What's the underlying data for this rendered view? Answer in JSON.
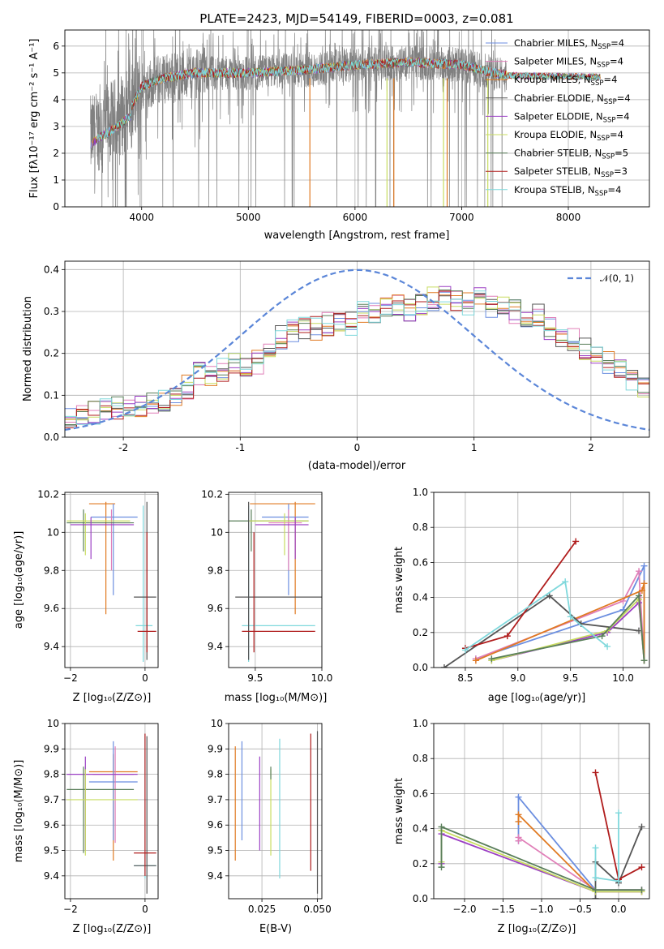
{
  "colors": {
    "Chabrier MILES": "#6b8ee0",
    "Salpeter MILES": "#e07fb8",
    "Kroupa MILES": "#e07a22",
    "Chabrier ELODIE": "#555555",
    "Salpeter ELODIE": "#9b3fc4",
    "Kroupa ELODIE": "#c8dc60",
    "Chabrier STELIB": "#5a7f5a",
    "Salpeter STELIB": "#b01c1c",
    "Kroupa STELIB": "#7fd8dc"
  },
  "chart_data": [
    {
      "id": "spectrum",
      "type": "line",
      "title": "PLATE=2423, MJD=54149, FIBERID=0003, z=0.081",
      "xlabel": "wavelength [Angstrom, rest frame]",
      "ylabel": "Flux [fλ10⁻¹⁷ erg cm⁻² s⁻¹ A⁻¹]",
      "xlim": [
        3280,
        8760
      ],
      "ylim": [
        0,
        6.6
      ],
      "xticks": [
        4000,
        5000,
        6000,
        7000,
        8000
      ],
      "yticks": [
        0,
        1,
        2,
        3,
        4,
        5,
        6
      ],
      "legend_position": "upper right",
      "legend": [
        {
          "name": "Chabrier MILES",
          "label": "Chabrier MILES, N",
          "sub": "SSP",
          "tail": "=4"
        },
        {
          "name": "Salpeter MILES",
          "label": "Salpeter MILES, N",
          "sub": "SSP",
          "tail": "=4"
        },
        {
          "name": "Kroupa MILES",
          "label": "Kroupa MILES, N",
          "sub": "SSP",
          "tail": "=4"
        },
        {
          "name": "Chabrier ELODIE",
          "label": "Chabrier ELODIE, N",
          "sub": "SSP",
          "tail": "=4"
        },
        {
          "name": "Salpeter ELODIE",
          "label": "Salpeter ELODIE, N",
          "sub": "SSP",
          "tail": "=4"
        },
        {
          "name": "Kroupa ELODIE",
          "label": "Kroupa ELODIE, N",
          "sub": "SSP",
          "tail": "=4"
        },
        {
          "name": "Chabrier STELIB",
          "label": "Chabrier STELIB, N",
          "sub": "SSP",
          "tail": "=5"
        },
        {
          "name": "Salpeter STELIB",
          "label": "Salpeter STELIB, N",
          "sub": "SSP",
          "tail": "=3"
        },
        {
          "name": "Kroupa STELIB",
          "label": "Kroupa STELIB, N",
          "sub": "SSP",
          "tail": "=4"
        }
      ],
      "data_range": [
        3520,
        7420
      ],
      "continuum": {
        "x": [
          3520,
          3600,
          3700,
          3800,
          3900,
          4000,
          4200,
          4500,
          5000,
          5500,
          6000,
          6500,
          7000,
          7300,
          7420
        ],
        "y": [
          2.6,
          2.9,
          3.1,
          3.4,
          3.7,
          4.5,
          4.8,
          5.0,
          5.0,
          5.1,
          5.3,
          5.4,
          5.3,
          5.0,
          4.9
        ]
      },
      "model_range": [
        3520,
        8300
      ],
      "sky_lines": [
        5577,
        6300,
        6364,
        6830,
        6864,
        7245
      ]
    },
    {
      "id": "residuals",
      "type": "bar",
      "xlabel": "(data-model)/error",
      "ylabel": "Normed distribution",
      "xlim": [
        -2.5,
        2.5
      ],
      "ylim": [
        0,
        0.42
      ],
      "xticks": [
        -2,
        -1,
        0,
        1,
        2
      ],
      "yticks": [
        0.0,
        0.1,
        0.2,
        0.3,
        0.4
      ],
      "ytick_labels": [
        "0.0",
        "0.1",
        "0.2",
        "0.3",
        "0.4"
      ],
      "bin_width": 0.1,
      "base_shape": [
        0.04,
        0.05,
        0.06,
        0.065,
        0.07,
        0.072,
        0.075,
        0.08,
        0.085,
        0.1,
        0.12,
        0.15,
        0.14,
        0.16,
        0.18,
        0.17,
        0.18,
        0.21,
        0.24,
        0.25,
        0.26,
        0.26,
        0.27,
        0.28,
        0.27,
        0.3,
        0.29,
        0.31,
        0.32,
        0.3,
        0.32,
        0.33,
        0.34,
        0.33,
        0.32,
        0.33,
        0.31,
        0.32,
        0.3,
        0.27,
        0.29,
        0.26,
        0.24,
        0.23,
        0.21,
        0.19,
        0.18,
        0.16,
        0.14,
        0.12
      ],
      "normal_label": "𝒩(0, 1)",
      "normal_color": "#5b86d8",
      "legend_position": "upper right"
    },
    {
      "id": "age_vs_Z",
      "type": "scatter",
      "xlabel": "Z [log₁₀(Z/Z⊙)]",
      "ylabel": "age  [log₁₀(age/yr)]",
      "xlim": [
        -2.15,
        0.35
      ],
      "ylim": [
        9.29,
        10.21
      ],
      "xticks": [
        -2,
        0
      ],
      "xtick_labels": [
        "−2",
        "0"
      ],
      "yticks": [
        9.4,
        9.6,
        9.8,
        10.0,
        10.2
      ],
      "points": [
        {
          "s": "Kroupa MILES",
          "x": -1.05,
          "y": 10.15,
          "ex": [
            -1.5,
            -0.8
          ],
          "ey": [
            9.57,
            10.16
          ]
        },
        {
          "s": "Chabrier MILES",
          "x": -0.85,
          "y": 10.08,
          "ex": [
            -1.45,
            -0.2
          ],
          "ey": [
            9.67,
            10.15
          ]
        },
        {
          "s": "Salpeter MILES",
          "x": -0.9,
          "y": 10.05,
          "ex": [
            -1.6,
            -0.4
          ],
          "ey": [
            9.8,
            10.12
          ]
        },
        {
          "s": "Chabrier STELIB",
          "x": -1.65,
          "y": 10.05,
          "ex": [
            -2.1,
            -0.3
          ],
          "ey": [
            9.9,
            10.12
          ]
        },
        {
          "s": "Kroupa ELODIE",
          "x": -1.6,
          "y": 10.06,
          "ex": [
            -2.1,
            -0.4
          ],
          "ey": [
            9.88,
            10.1
          ]
        },
        {
          "s": "Salpeter ELODIE",
          "x": -1.45,
          "y": 10.04,
          "ex": [
            -2.0,
            -0.3
          ],
          "ey": [
            9.86,
            10.08
          ]
        },
        {
          "s": "Kroupa STELIB",
          "x": -0.05,
          "y": 9.51,
          "ex": [
            -0.25,
            0.2
          ],
          "ey": [
            9.32,
            10.14
          ]
        },
        {
          "s": "Chabrier ELODIE",
          "x": 0.05,
          "y": 9.66,
          "ex": [
            -0.3,
            0.3
          ],
          "ey": [
            9.33,
            10.16
          ]
        },
        {
          "s": "Salpeter STELIB",
          "x": 0.05,
          "y": 9.48,
          "ex": [
            -0.2,
            0.3
          ],
          "ey": [
            9.37,
            10.0
          ]
        }
      ]
    },
    {
      "id": "age_vs_mass",
      "type": "scatter",
      "xlabel": "mass [log₁₀(M/M⊙)]",
      "xlim": [
        9.3,
        10.0
      ],
      "ylim": [
        9.29,
        10.21
      ],
      "xticks": [
        9.5,
        10.0
      ],
      "xtick_labels": [
        "9.5",
        "10.0"
      ],
      "yticks": [
        9.4,
        9.6,
        9.8,
        10.0,
        10.2
      ],
      "points": [
        {
          "s": "Kroupa MILES",
          "x": 9.8,
          "y": 10.15,
          "ex": [
            9.46,
            9.95
          ],
          "ey": [
            9.57,
            10.16
          ]
        },
        {
          "s": "Chabrier MILES",
          "x": 9.75,
          "y": 10.08,
          "ex": [
            9.55,
            9.9
          ],
          "ey": [
            9.67,
            10.15
          ]
        },
        {
          "s": "Salpeter MILES",
          "x": 9.75,
          "y": 10.05,
          "ex": [
            9.6,
            9.85
          ],
          "ey": [
            9.8,
            10.12
          ]
        },
        {
          "s": "Chabrier STELIB",
          "x": 9.47,
          "y": 10.06,
          "ex": [
            9.3,
            9.9
          ],
          "ey": [
            9.9,
            10.12
          ]
        },
        {
          "s": "Kroupa ELODIE",
          "x": 9.72,
          "y": 10.06,
          "ex": [
            9.45,
            9.9
          ],
          "ey": [
            9.88,
            10.1
          ]
        },
        {
          "s": "Salpeter ELODIE",
          "x": 9.8,
          "y": 10.04,
          "ex": [
            9.5,
            9.9
          ],
          "ey": [
            9.86,
            10.08
          ]
        },
        {
          "s": "Kroupa STELIB",
          "x": 9.45,
          "y": 9.51,
          "ex": [
            9.4,
            9.95
          ],
          "ey": [
            9.32,
            10.14
          ]
        },
        {
          "s": "Chabrier ELODIE",
          "x": 9.45,
          "y": 9.66,
          "ex": [
            9.35,
            10.0
          ],
          "ey": [
            9.33,
            10.16
          ]
        },
        {
          "s": "Salpeter STELIB",
          "x": 9.49,
          "y": 9.48,
          "ex": [
            9.4,
            9.95
          ],
          "ey": [
            9.37,
            10.0
          ]
        }
      ]
    },
    {
      "id": "weight_vs_age",
      "type": "line",
      "xlabel": "age  [log₁₀(age/yr)]",
      "ylabel": "mass weight",
      "xlim": [
        8.2,
        10.25
      ],
      "ylim": [
        0,
        1
      ],
      "xticks": [
        8.5,
        9.0,
        9.5,
        10.0
      ],
      "xtick_labels": [
        "8.5",
        "9.0",
        "9.5",
        "10.0"
      ],
      "yticks": [
        0,
        0.2,
        0.4,
        0.6,
        0.8,
        1.0
      ],
      "ytick_labels": [
        "0.0",
        "0.2",
        "0.4",
        "0.6",
        "0.8",
        "1.0"
      ],
      "series": [
        {
          "s": "Chabrier MILES",
          "x": [
            8.6,
            10.0,
            10.2,
            10.2
          ],
          "y": [
            0.05,
            0.33,
            0.58,
            0.04
          ]
        },
        {
          "s": "Salpeter MILES",
          "x": [
            8.6,
            10.0,
            10.15,
            10.2
          ],
          "y": [
            0.05,
            0.38,
            0.55,
            0.04
          ]
        },
        {
          "s": "Kroupa MILES",
          "x": [
            8.6,
            10.18,
            10.2,
            10.2
          ],
          "y": [
            0.04,
            0.44,
            0.48,
            0.04
          ]
        },
        {
          "s": "Chabrier ELODIE",
          "x": [
            8.3,
            9.3,
            9.6,
            10.15
          ],
          "y": [
            0.0,
            0.41,
            0.25,
            0.21
          ]
        },
        {
          "s": "Salpeter ELODIE",
          "x": [
            8.75,
            9.85,
            10.15,
            10.2
          ],
          "y": [
            0.04,
            0.2,
            0.37,
            0.04
          ]
        },
        {
          "s": "Kroupa ELODIE",
          "x": [
            8.75,
            9.85,
            10.15,
            10.2
          ],
          "y": [
            0.04,
            0.21,
            0.39,
            0.04
          ]
        },
        {
          "s": "Chabrier STELIB",
          "x": [
            8.75,
            9.8,
            10.15,
            10.2
          ],
          "y": [
            0.05,
            0.18,
            0.41,
            0.04
          ]
        },
        {
          "s": "Salpeter STELIB",
          "x": [
            8.5,
            8.9,
            9.55
          ],
          "y": [
            0.11,
            0.18,
            0.72
          ]
        },
        {
          "s": "Kroupa STELIB",
          "x": [
            8.5,
            9.45,
            9.5,
            9.85
          ],
          "y": [
            0.1,
            0.49,
            0.29,
            0.12
          ]
        }
      ]
    },
    {
      "id": "mass_vs_Z",
      "type": "scatter",
      "xlabel": "Z [log₁₀(Z/Z⊙)]",
      "ylabel": "mass [log₁₀(M/M⊙)]",
      "xlim": [
        -2.15,
        0.35
      ],
      "ylim": [
        9.31,
        10.0
      ],
      "xticks": [
        -2,
        0
      ],
      "xtick_labels": [
        "−2",
        "0"
      ],
      "yticks": [
        9.4,
        9.5,
        9.6,
        9.7,
        9.8,
        9.9,
        10.0
      ],
      "points": [
        {
          "s": "Kroupa MILES",
          "x": -0.85,
          "y": 9.81,
          "ex": [
            -1.5,
            -0.2
          ],
          "ey": [
            9.46,
            9.88
          ]
        },
        {
          "s": "Chabrier MILES",
          "x": -0.85,
          "y": 9.77,
          "ex": [
            -1.5,
            -0.2
          ],
          "ey": [
            9.54,
            9.93
          ]
        },
        {
          "s": "Salpeter MILES",
          "x": -0.8,
          "y": 9.8,
          "ex": [
            -1.4,
            -0.3
          ],
          "ey": [
            9.53,
            9.91
          ]
        },
        {
          "s": "Salpeter ELODIE",
          "x": -1.6,
          "y": 9.8,
          "ex": [
            -2.1,
            -0.2
          ],
          "ey": [
            9.5,
            9.87
          ]
        },
        {
          "s": "Chabrier STELIB",
          "x": -1.65,
          "y": 9.74,
          "ex": [
            -2.1,
            -0.3
          ],
          "ey": [
            9.49,
            9.83
          ]
        },
        {
          "s": "Kroupa ELODIE",
          "x": -1.6,
          "y": 9.7,
          "ex": [
            -2.1,
            -0.2
          ],
          "ey": [
            9.48,
            9.82
          ]
        },
        {
          "s": "Kroupa STELIB",
          "x": 0.0,
          "y": 9.44,
          "ex": [
            -0.3,
            0.3
          ],
          "ey": [
            9.39,
            9.96
          ]
        },
        {
          "s": "Chabrier ELODIE",
          "x": 0.05,
          "y": 9.44,
          "ex": [
            -0.3,
            0.3
          ],
          "ey": [
            9.33,
            9.95
          ]
        },
        {
          "s": "Salpeter STELIB",
          "x": 0.0,
          "y": 9.49,
          "ex": [
            -0.3,
            0.3
          ],
          "ey": [
            9.4,
            9.96
          ]
        }
      ]
    },
    {
      "id": "mass_vs_ebv",
      "type": "scatter",
      "xlabel": "E(B-V)",
      "xlim": [
        0.01,
        0.052
      ],
      "ylim": [
        9.31,
        10.0
      ],
      "xticks": [
        0.025,
        0.05
      ],
      "xtick_labels": [
        "0.025",
        "0.050"
      ],
      "yticks": [
        9.4,
        9.5,
        9.6,
        9.7,
        9.8,
        9.9,
        10.0
      ],
      "points": [
        {
          "s": "Kroupa MILES",
          "x": 0.013,
          "ey": [
            9.46,
            9.91
          ]
        },
        {
          "s": "Chabrier MILES",
          "x": 0.016,
          "ey": [
            9.54,
            9.93
          ]
        },
        {
          "s": "Salpeter ELODIE",
          "x": 0.024,
          "ey": [
            9.5,
            9.87
          ]
        },
        {
          "s": "Kroupa ELODIE",
          "x": 0.029,
          "ey": [
            9.48,
            9.82
          ]
        },
        {
          "s": "Chabrier STELIB",
          "x": 0.029,
          "ey": [
            9.78,
            9.83
          ]
        },
        {
          "s": "Kroupa STELIB",
          "x": 0.033,
          "ey": [
            9.39,
            9.94
          ]
        },
        {
          "s": "Salpeter STELIB",
          "x": 0.047,
          "ey": [
            9.42,
            9.96
          ]
        },
        {
          "s": "Chabrier ELODIE",
          "x": 0.05,
          "ey": [
            9.33,
            9.97
          ]
        }
      ]
    },
    {
      "id": "weight_vs_Z",
      "type": "line",
      "xlabel": "Z [log₁₀(Z/Z⊙)]",
      "ylabel": "mass weight",
      "xlim": [
        -2.4,
        0.4
      ],
      "ylim": [
        0,
        1
      ],
      "xticks": [
        -2.0,
        -1.5,
        -1.0,
        -0.5,
        0.0
      ],
      "xtick_labels": [
        "−2.0",
        "−1.5",
        "−1.0",
        "−0.5",
        "0.0"
      ],
      "yticks": [
        0,
        0.2,
        0.4,
        0.6,
        0.8,
        1.0
      ],
      "ytick_labels": [
        "0.0",
        "0.2",
        "0.4",
        "0.6",
        "0.8",
        "1.0"
      ],
      "series": [
        {
          "s": "Chabrier MILES",
          "x": [
            -1.3,
            -1.3,
            -0.3,
            0.3
          ],
          "y": [
            0.33,
            0.58,
            0.05,
            0.05
          ]
        },
        {
          "s": "Salpeter MILES",
          "x": [
            -1.3,
            -1.3,
            -0.3,
            0.3
          ],
          "y": [
            0.33,
            0.35,
            0.05,
            0.05
          ]
        },
        {
          "s": "Kroupa MILES",
          "x": [
            -1.3,
            -1.3,
            -0.3,
            0.3
          ],
          "y": [
            0.44,
            0.48,
            0.04,
            0.04
          ]
        },
        {
          "s": "Chabrier ELODIE",
          "x": [
            -0.3,
            -0.3,
            0.0,
            0.3
          ],
          "y": [
            0.0,
            0.21,
            0.09,
            0.41
          ]
        },
        {
          "s": "Salpeter ELODIE",
          "x": [
            -2.3,
            -2.3,
            -0.3,
            0.3
          ],
          "y": [
            0.2,
            0.37,
            0.04,
            0.04
          ]
        },
        {
          "s": "Kroupa ELODIE",
          "x": [
            -2.3,
            -2.3,
            -0.3,
            0.3
          ],
          "y": [
            0.21,
            0.39,
            0.04,
            0.04
          ]
        },
        {
          "s": "Chabrier STELIB",
          "x": [
            -2.3,
            -2.3,
            -0.3,
            0.3
          ],
          "y": [
            0.18,
            0.41,
            0.05,
            0.05
          ]
        },
        {
          "s": "Salpeter STELIB",
          "x": [
            -0.3,
            0.0,
            0.3
          ],
          "y": [
            0.72,
            0.11,
            0.18
          ]
        },
        {
          "s": "Kroupa STELIB",
          "x": [
            -0.3,
            -0.3,
            0.0,
            0.0
          ],
          "y": [
            0.29,
            0.12,
            0.1,
            0.49
          ]
        }
      ]
    }
  ]
}
